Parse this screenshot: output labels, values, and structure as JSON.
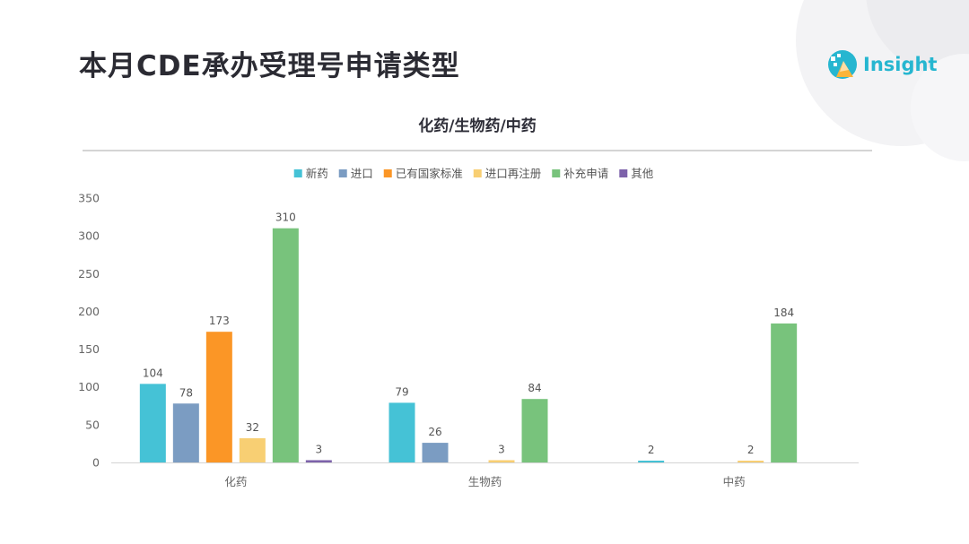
{
  "page": {
    "title": "本月CDE承办受理号申请类型",
    "brand": "Insight"
  },
  "colors": {
    "新药": "#45c2d6",
    "进口": "#7b9cc2",
    "已有国家标准": "#fb9626",
    "进口再注册": "#f8cf73",
    "补充申请": "#78c37c",
    "其他": "#7d62aa",
    "title_text": "#2b2b33",
    "brand_accent": "#26b6d0"
  },
  "chart_data": {
    "type": "bar",
    "title": "化药/生物药/中药",
    "categories": [
      "化药",
      "生物药",
      "中药"
    ],
    "series": [
      {
        "name": "新药",
        "values": [
          104,
          79,
          2
        ]
      },
      {
        "name": "进口",
        "values": [
          78,
          26,
          null
        ]
      },
      {
        "name": "已有国家标准",
        "values": [
          173,
          null,
          null
        ]
      },
      {
        "name": "进口再注册",
        "values": [
          32,
          3,
          2
        ]
      },
      {
        "name": "补充申请",
        "values": [
          310,
          84,
          184
        ]
      },
      {
        "name": "其他",
        "values": [
          3,
          null,
          null
        ]
      }
    ],
    "ylim": [
      0,
      350
    ],
    "yticks": [
      0,
      50,
      100,
      150,
      200,
      250,
      300,
      350
    ],
    "legend_position": "top",
    "grid": false,
    "data_labels": true
  }
}
